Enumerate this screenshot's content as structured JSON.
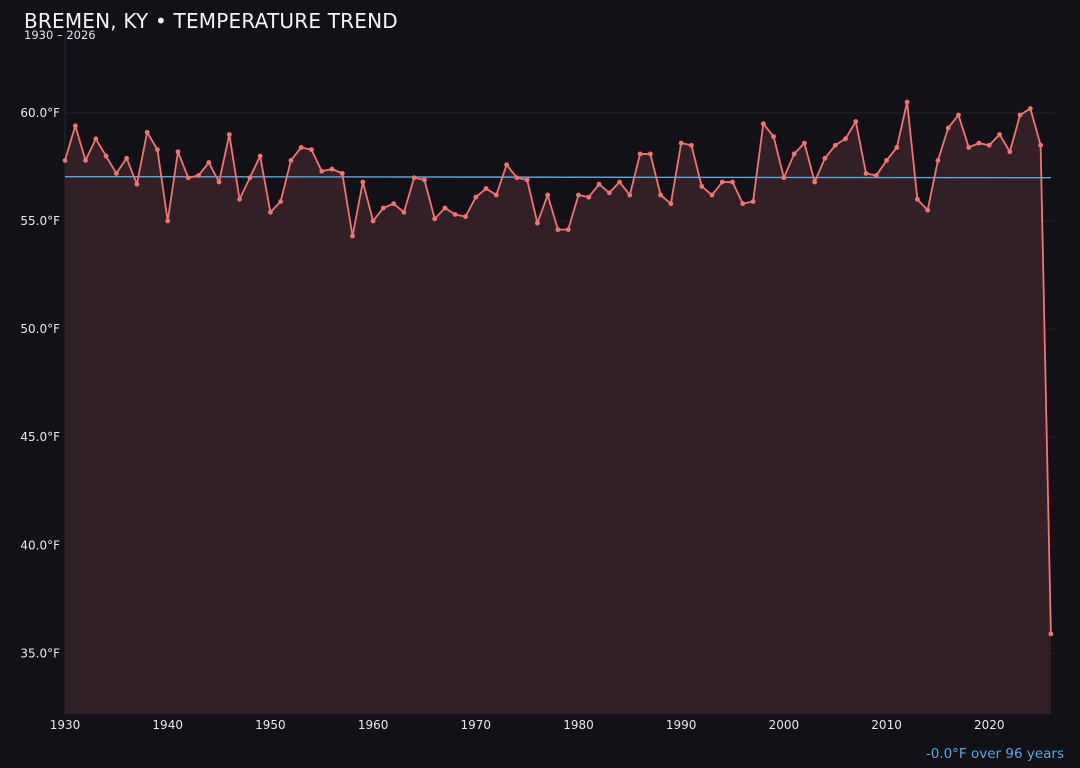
{
  "chart_data": {
    "type": "line",
    "title": "BREMEN, KY • TEMPERATURE TREND",
    "subtitle": "1930 – 2026",
    "trend_note": "-0.0°F over 96 years",
    "xlabel": "",
    "ylabel": "",
    "xlim": [
      1930,
      2026.4
    ],
    "ylim": [
      32.2,
      63.6
    ],
    "x_ticks": [
      1930,
      1940,
      1950,
      1960,
      1970,
      1980,
      1990,
      2000,
      2010,
      2020
    ],
    "y_ticks": [
      35,
      40,
      45,
      50,
      55,
      60
    ],
    "y_tick_suffix": "°F",
    "grid": true,
    "trend_line": {
      "y_start": 57.05,
      "y_end": 57.0
    },
    "colors": {
      "series": "#f07474",
      "fill": "#331f26",
      "trend": "#5aa8e0",
      "background": "#121117",
      "grid": "#26202a"
    },
    "series": [
      {
        "x": [
          1930,
          1931,
          1932,
          1933,
          1934,
          1935,
          1936,
          1937,
          1938,
          1939,
          1940,
          1941,
          1942,
          1943,
          1944,
          1945,
          1946,
          1947,
          1948,
          1949,
          1950,
          1951,
          1952,
          1953,
          1954,
          1955,
          1956,
          1957,
          1958,
          1959,
          1960,
          1961,
          1962,
          1963,
          1964,
          1965,
          1966,
          1967,
          1968,
          1969,
          1970,
          1971,
          1972,
          1973,
          1974,
          1975,
          1976,
          1977,
          1978,
          1979,
          1980,
          1981,
          1982,
          1983,
          1984,
          1985,
          1986,
          1987,
          1988,
          1989,
          1990,
          1991,
          1992,
          1993,
          1994,
          1995,
          1996,
          1997,
          1998,
          1999,
          2000,
          2001,
          2002,
          2003,
          2004,
          2005,
          2006,
          2007,
          2008,
          2009,
          2010,
          2011,
          2012,
          2013,
          2014,
          2015,
          2016,
          2017,
          2018,
          2019,
          2020,
          2021,
          2022,
          2023,
          2024,
          2025,
          2026
        ],
        "values": [
          57.8,
          59.4,
          57.8,
          58.8,
          58.0,
          57.2,
          57.9,
          56.7,
          59.1,
          58.3,
          55.0,
          58.2,
          57.0,
          57.1,
          57.7,
          56.8,
          59.0,
          56.0,
          57.0,
          58.0,
          55.4,
          55.9,
          57.8,
          58.4,
          58.3,
          57.3,
          57.4,
          57.2,
          54.3,
          56.8,
          55.0,
          55.6,
          55.8,
          55.4,
          57.0,
          56.9,
          55.1,
          55.6,
          55.3,
          55.2,
          56.1,
          56.5,
          56.2,
          57.6,
          57.0,
          56.9,
          54.9,
          56.2,
          54.6,
          54.6,
          56.2,
          56.1,
          56.7,
          56.3,
          56.8,
          56.2,
          58.1,
          58.1,
          56.2,
          55.8,
          58.6,
          58.5,
          56.6,
          56.2,
          56.8,
          56.8,
          55.8,
          55.9,
          59.5,
          58.9,
          57.0,
          58.1,
          58.6,
          56.8,
          57.9,
          58.5,
          58.8,
          59.6,
          57.2,
          57.1,
          57.8,
          58.4,
          60.5,
          56.0,
          55.5,
          57.8,
          59.3,
          59.9,
          58.4,
          58.6,
          58.5,
          59.0,
          58.2,
          59.9,
          60.2,
          58.5,
          35.9
        ]
      }
    ]
  }
}
